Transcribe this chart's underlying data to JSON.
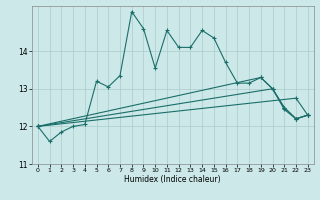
{
  "xlabel": "Humidex (Indice chaleur)",
  "ylabel": "",
  "xlim": [
    -0.5,
    23.5
  ],
  "ylim": [
    11,
    15.2
  ],
  "yticks": [
    11,
    12,
    13,
    14
  ],
  "xticks": [
    0,
    1,
    2,
    3,
    4,
    5,
    6,
    7,
    8,
    9,
    10,
    11,
    12,
    13,
    14,
    15,
    16,
    17,
    18,
    19,
    20,
    21,
    22,
    23
  ],
  "bg_color": "#cce8e8",
  "grid_color": "#aacccc",
  "line_color": "#1a6e6a",
  "lines": [
    {
      "x": [
        0,
        1,
        2,
        3,
        4,
        5,
        6,
        7,
        8,
        9,
        10,
        11,
        12,
        13,
        14,
        15,
        16,
        17,
        18,
        19,
        20,
        21,
        22,
        23
      ],
      "y": [
        12.0,
        11.6,
        11.85,
        12.0,
        12.05,
        13.2,
        13.05,
        13.35,
        15.05,
        14.6,
        13.55,
        14.55,
        14.1,
        14.1,
        14.55,
        14.35,
        13.7,
        13.15,
        13.15,
        13.3,
        13.0,
        12.45,
        12.2,
        12.3
      ]
    },
    {
      "x": [
        0,
        22,
        23
      ],
      "y": [
        12.0,
        12.75,
        12.3
      ]
    },
    {
      "x": [
        0,
        20,
        21,
        22,
        23
      ],
      "y": [
        12.0,
        13.0,
        12.5,
        12.2,
        12.3
      ]
    },
    {
      "x": [
        0,
        19,
        20,
        21,
        22,
        23
      ],
      "y": [
        12.0,
        13.3,
        13.0,
        12.5,
        12.2,
        12.3
      ]
    }
  ]
}
